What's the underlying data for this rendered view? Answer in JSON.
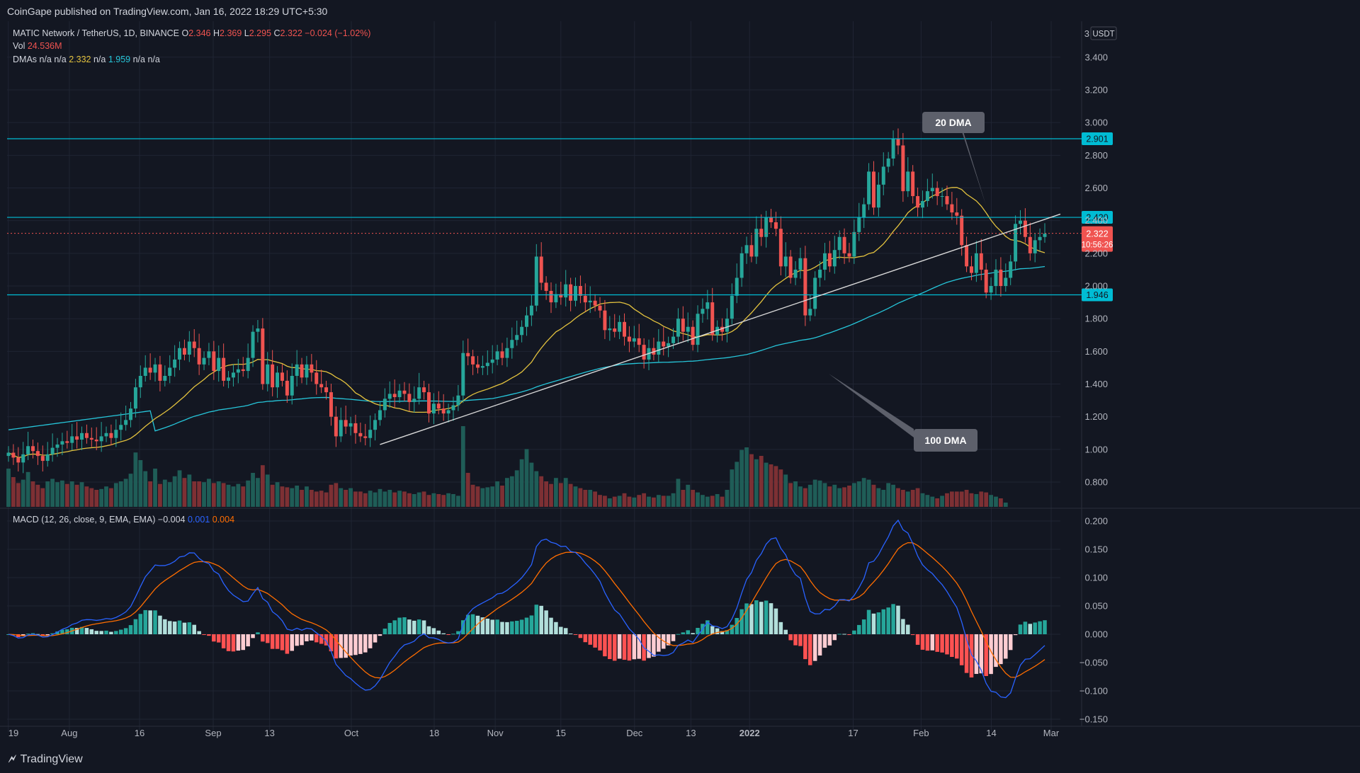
{
  "header": {
    "published_text": "CoinGape published on TradingView.com, Jan 16, 2022 18:29 UTC+5:30"
  },
  "legend": {
    "symbol": "MATIC Network / TetherUS, 1D, BINANCE",
    "ohlc": [
      {
        "label": "O",
        "value": "2.346"
      },
      {
        "label": "H",
        "value": "2.369"
      },
      {
        "label": "L",
        "value": "2.295"
      },
      {
        "label": "C",
        "value": "2.322"
      }
    ],
    "change": "−0.024 (−1.02%)",
    "vol_label": "Vol",
    "vol_value": "24.536M",
    "dma_label": "DMAs",
    "dma_values": [
      "n/a",
      "n/a",
      "2.332",
      "n/a",
      "1.959",
      "n/a",
      "n/a"
    ]
  },
  "macd_legend": {
    "label": "MACD (12, 26, close, 9, EMA, EMA)",
    "values": [
      "−0.004",
      "0.001",
      "0.004"
    ]
  },
  "annotations": {
    "dma20": "20 DMA",
    "dma100": "100 DMA"
  },
  "footer": {
    "brand": "TradingView"
  },
  "colors": {
    "background": "#131722",
    "grid": "#1f2433",
    "up": "#26a69a",
    "down": "#ef5350",
    "vol_up": "#1f5d57",
    "vol_down": "#7d3034",
    "level_line": "#00bcd4",
    "dma20": "#e3c23e",
    "dma100": "#26c6da",
    "trendline": "#d9d9d9",
    "macd_line": "#2962ff",
    "signal_line": "#ff6d00",
    "price_label": "#f05350",
    "callout": "#5d606b"
  },
  "chart_data": [
    {
      "type": "candlestick",
      "title": "MATIC Network / TetherUS, 1D, BINANCE",
      "currency": "USDT",
      "y_ticks": [
        "0.800",
        "1.000",
        "1.200",
        "1.400",
        "1.600",
        "1.800",
        "2.000",
        "2.200",
        "2.400",
        "2.600",
        "2.800",
        "3.000",
        "3.200",
        "3.400"
      ],
      "x_ticks": [
        "19",
        "Aug",
        "16",
        "Sep",
        "13",
        "Oct",
        "18",
        "Nov",
        "15",
        "Dec",
        "13",
        "2022",
        "17",
        "Feb",
        "14",
        "Mar"
      ],
      "ylim": [
        0.64,
        3.62
      ],
      "horizontal_levels": [
        {
          "value": 2.901,
          "label": "2.901"
        },
        {
          "value": 2.42,
          "label": "2.420"
        },
        {
          "value": 1.946,
          "label": "1.946"
        }
      ],
      "current_price": {
        "value": 2.322,
        "label": "2.322",
        "countdown": "10:56:26"
      },
      "top_axis_label": "3",
      "trendline": {
        "from": [
          "Sep 27",
          1.03
        ],
        "to": [
          "Mar 2",
          2.44
        ]
      },
      "closes": [
        0.98,
        0.95,
        0.92,
        0.97,
        1.02,
        0.99,
        0.96,
        0.93,
        0.97,
        1.01,
        1.03,
        1.05,
        1.04,
        1.08,
        1.06,
        1.1,
        1.07,
        1.06,
        1.05,
        1.08,
        1.1,
        1.07,
        1.12,
        1.15,
        1.18,
        1.25,
        1.38,
        1.45,
        1.5,
        1.47,
        1.52,
        1.42,
        1.45,
        1.5,
        1.55,
        1.62,
        1.58,
        1.66,
        1.62,
        1.52,
        1.56,
        1.6,
        1.48,
        1.56,
        1.42,
        1.44,
        1.47,
        1.49,
        1.48,
        1.56,
        1.72,
        1.74,
        1.4,
        1.52,
        1.38,
        1.47,
        1.42,
        1.33,
        1.45,
        1.52,
        1.44,
        1.52,
        1.47,
        1.4,
        1.38,
        1.35,
        1.2,
        1.08,
        1.18,
        1.14,
        1.16,
        1.1,
        1.08,
        1.07,
        1.12,
        1.18,
        1.24,
        1.31,
        1.34,
        1.32,
        1.36,
        1.34,
        1.29,
        1.31,
        1.38,
        1.35,
        1.22,
        1.28,
        1.25,
        1.22,
        1.24,
        1.27,
        1.33,
        1.59,
        1.57,
        1.52,
        1.5,
        1.51,
        1.53,
        1.55,
        1.6,
        1.56,
        1.62,
        1.67,
        1.7,
        1.75,
        1.82,
        1.88,
        2.18,
        2.02,
        1.97,
        1.9,
        1.95,
        1.93,
        2.01,
        1.91,
        2.0,
        1.94,
        1.9,
        1.91,
        1.88,
        1.85,
        1.73,
        1.74,
        1.72,
        1.78,
        1.69,
        1.66,
        1.68,
        1.64,
        1.55,
        1.62,
        1.58,
        1.66,
        1.63,
        1.65,
        1.69,
        1.8,
        1.72,
        1.75,
        1.64,
        1.83,
        1.86,
        1.9,
        1.7,
        1.75,
        1.72,
        1.8,
        1.94,
        2.05,
        2.2,
        2.25,
        2.18,
        2.35,
        2.3,
        2.42,
        2.39,
        2.35,
        2.12,
        2.18,
        2.05,
        2.1,
        2.17,
        1.82,
        1.86,
        2.05,
        2.1,
        2.2,
        2.12,
        2.22,
        2.3,
        2.2,
        2.18,
        2.33,
        2.42,
        2.5,
        2.7,
        2.48,
        2.62,
        2.73,
        2.78,
        2.9,
        2.86,
        2.58,
        2.7,
        2.55,
        2.48,
        2.52,
        2.58,
        2.6,
        2.55,
        2.55,
        2.5,
        2.45,
        2.43,
        2.25,
        2.12,
        2.08,
        2.2,
        2.1,
        1.96,
        2.0,
        2.1,
        2.0,
        2.05,
        2.15,
        2.38,
        2.4,
        2.3,
        2.2,
        2.28,
        2.3,
        2.32
      ],
      "volume_relative": [
        0.45,
        0.35,
        0.28,
        0.32,
        0.41,
        0.3,
        0.26,
        0.22,
        0.3,
        0.33,
        0.29,
        0.31,
        0.27,
        0.3,
        0.26,
        0.29,
        0.24,
        0.22,
        0.2,
        0.21,
        0.24,
        0.22,
        0.28,
        0.3,
        0.33,
        0.39,
        0.64,
        0.55,
        0.42,
        0.3,
        0.45,
        0.27,
        0.32,
        0.29,
        0.36,
        0.43,
        0.34,
        0.38,
        0.3,
        0.3,
        0.29,
        0.33,
        0.28,
        0.3,
        0.28,
        0.26,
        0.24,
        0.27,
        0.24,
        0.31,
        0.4,
        0.34,
        0.49,
        0.38,
        0.26,
        0.29,
        0.24,
        0.23,
        0.22,
        0.25,
        0.2,
        0.24,
        0.2,
        0.18,
        0.19,
        0.17,
        0.26,
        0.28,
        0.22,
        0.2,
        0.22,
        0.18,
        0.18,
        0.16,
        0.19,
        0.17,
        0.21,
        0.18,
        0.2,
        0.17,
        0.19,
        0.18,
        0.16,
        0.15,
        0.17,
        0.18,
        0.14,
        0.16,
        0.15,
        0.14,
        0.16,
        0.15,
        0.13,
        0.95,
        0.4,
        0.26,
        0.24,
        0.22,
        0.23,
        0.24,
        0.3,
        0.25,
        0.34,
        0.36,
        0.43,
        0.56,
        0.68,
        0.52,
        0.42,
        0.36,
        0.3,
        0.27,
        0.34,
        0.28,
        0.34,
        0.27,
        0.24,
        0.22,
        0.2,
        0.2,
        0.18,
        0.14,
        0.13,
        0.1,
        0.12,
        0.13,
        0.16,
        0.12,
        0.11,
        0.14,
        0.16,
        0.12,
        0.11,
        0.14,
        0.13,
        0.13,
        0.16,
        0.33,
        0.2,
        0.26,
        0.2,
        0.17,
        0.14,
        0.12,
        0.13,
        0.15,
        0.12,
        0.2,
        0.44,
        0.53,
        0.67,
        0.7,
        0.62,
        0.56,
        0.6,
        0.52,
        0.5,
        0.48,
        0.44,
        0.38,
        0.28,
        0.3,
        0.24,
        0.22,
        0.26,
        0.32,
        0.31,
        0.28,
        0.24,
        0.26,
        0.22,
        0.23,
        0.25,
        0.28,
        0.3,
        0.34,
        0.32,
        0.26,
        0.22,
        0.2,
        0.28,
        0.26,
        0.22,
        0.2,
        0.18,
        0.2,
        0.22,
        0.16,
        0.14,
        0.12,
        0.1,
        0.13,
        0.16,
        0.18,
        0.18,
        0.18,
        0.2,
        0.16,
        0.15,
        0.18,
        0.17,
        0.14,
        0.12,
        0.1,
        0.05
      ]
    },
    {
      "type": "line",
      "title": "MACD (12, 26, close, 9, EMA, EMA)",
      "y_ticks": [
        "0.200",
        "0.150",
        "0.100",
        "0.050",
        "0.000",
        "−0.050",
        "−0.100",
        "−0.150"
      ],
      "ylim": [
        -0.16,
        0.215
      ]
    }
  ]
}
